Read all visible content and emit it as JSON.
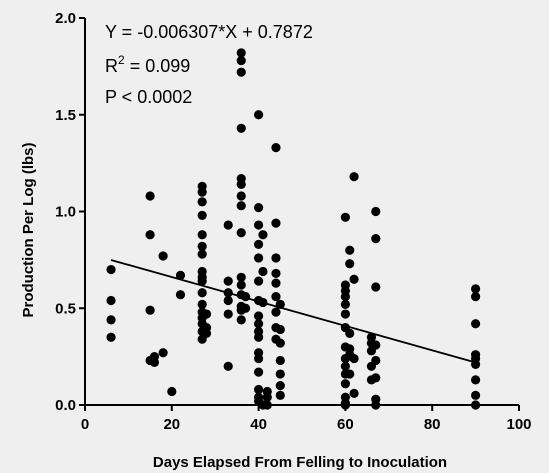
{
  "chart_data": {
    "type": "scatter",
    "xlabel": "Days Elapsed From Felling to Inoculation",
    "ylabel": "Production Per Log (lbs)",
    "xlim": [
      0,
      100
    ],
    "ylim": [
      0,
      2.0
    ],
    "xticks": [
      "0",
      "20",
      "40",
      "60",
      "80",
      "100"
    ],
    "yticks": [
      "0.0",
      "0.5",
      "1.0",
      "1.5",
      "2.0"
    ],
    "annotations": {
      "equation": "Y = -0.006307*X + 0.7872",
      "r2_prefix": "R",
      "r2_sup": "2",
      "r2_value": " = 0.099",
      "p_value": "P < 0.0002"
    },
    "fit": {
      "slope": -0.006307,
      "intercept": 0.7872,
      "x_range": [
        6,
        90
      ]
    },
    "x": [
      6,
      6,
      6,
      6,
      15,
      15,
      15,
      15,
      16,
      16,
      18,
      18,
      20,
      22,
      22,
      27,
      27,
      27,
      27,
      27,
      27,
      27,
      27,
      27,
      27,
      27,
      27,
      27,
      27,
      27,
      27,
      27,
      28,
      28,
      28,
      33,
      33,
      33,
      33,
      33,
      33,
      36,
      36,
      36,
      36,
      36,
      36,
      36,
      36,
      36,
      36,
      36,
      36,
      36,
      36,
      36,
      37,
      37,
      40,
      40,
      40,
      40,
      40,
      40,
      40,
      40,
      40,
      40,
      40,
      40,
      40,
      40,
      40,
      40,
      40,
      41,
      41,
      41,
      41,
      42,
      42,
      42,
      44,
      44,
      44,
      44,
      44,
      44,
      44,
      44,
      44,
      45,
      45,
      45,
      45,
      45,
      45,
      45,
      60,
      60,
      60,
      60,
      60,
      60,
      60,
      60,
      60,
      60,
      60,
      60,
      60,
      60,
      60,
      61,
      61,
      61,
      61,
      61,
      61,
      62,
      62,
      62,
      62,
      66,
      66,
      66,
      66,
      66,
      67,
      67,
      67,
      67,
      67,
      67,
      67,
      67,
      90,
      90,
      90,
      90,
      90,
      90,
      90,
      90,
      90
    ],
    "y": [
      0.7,
      0.54,
      0.44,
      0.35,
      1.08,
      0.88,
      0.49,
      0.23,
      0.25,
      0.22,
      0.77,
      0.27,
      0.07,
      0.57,
      0.67,
      1.13,
      1.1,
      1.05,
      0.98,
      0.88,
      0.82,
      0.78,
      0.69,
      0.66,
      0.64,
      0.58,
      0.52,
      0.48,
      0.45,
      0.42,
      0.38,
      0.34,
      0.4,
      0.47,
      0.37,
      0.93,
      0.64,
      0.58,
      0.54,
      0.47,
      0.2,
      1.82,
      1.78,
      1.72,
      1.43,
      1.17,
      1.14,
      1.08,
      1.03,
      0.89,
      0.66,
      0.62,
      0.57,
      0.51,
      0.49,
      0.44,
      0.56,
      0.5,
      1.5,
      1.02,
      0.93,
      0.83,
      0.76,
      0.64,
      0.54,
      0.46,
      0.42,
      0.38,
      0.35,
      0.27,
      0.24,
      0.17,
      0.08,
      0.04,
      0.02,
      0.88,
      0.69,
      0.53,
      0.0,
      0.07,
      0.04,
      0.0,
      1.33,
      0.94,
      0.76,
      0.68,
      0.63,
      0.56,
      0.48,
      0.4,
      0.34,
      0.52,
      0.39,
      0.32,
      0.23,
      0.16,
      0.1,
      0.05,
      0.97,
      0.62,
      0.59,
      0.56,
      0.52,
      0.47,
      0.4,
      0.3,
      0.24,
      0.2,
      0.16,
      0.11,
      0.04,
      0.01,
      0.0,
      0.8,
      0.73,
      0.37,
      0.29,
      0.26,
      0.16,
      1.18,
      0.65,
      0.24,
      0.06,
      0.35,
      0.32,
      0.28,
      0.2,
      0.13,
      1.0,
      0.86,
      0.61,
      0.31,
      0.23,
      0.14,
      0.03,
      0.0,
      0.6,
      0.56,
      0.42,
      0.26,
      0.24,
      0.21,
      0.13,
      0.05,
      0.0
    ]
  }
}
